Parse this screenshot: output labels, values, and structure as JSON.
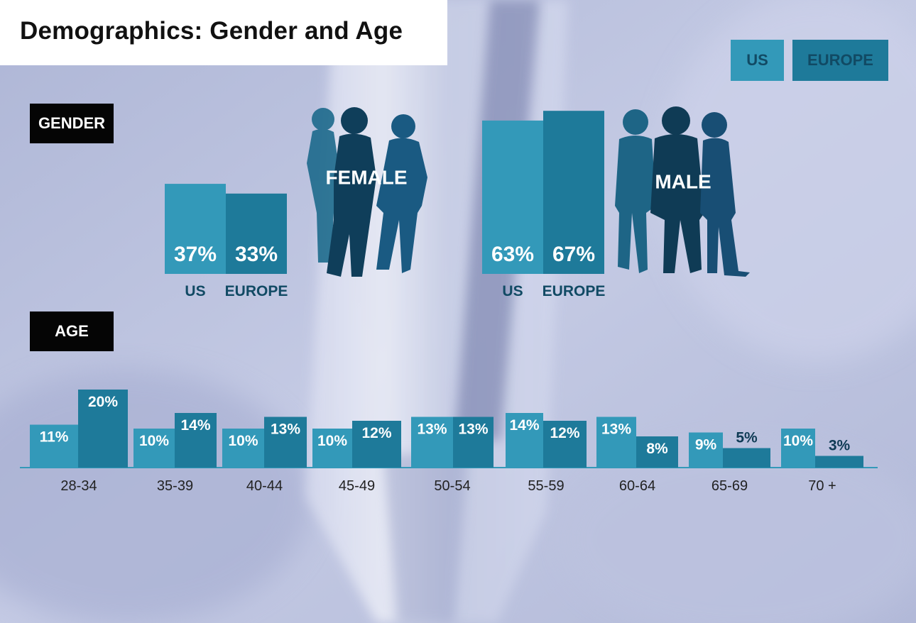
{
  "title": "Demographics: Gender and Age",
  "legend": [
    {
      "label": "US",
      "color": "#3399b9"
    },
    {
      "label": "EUROPE",
      "color": "#1e7a9a"
    }
  ],
  "sections": {
    "gender": "GENDER",
    "age": "AGE"
  },
  "icons": [
    "female-silhouettes-icon",
    "male-silhouettes-icon"
  ],
  "chart_data": [
    {
      "type": "bar",
      "title": "GENDER",
      "categories": [
        "FEMALE",
        "MALE"
      ],
      "group_labels": [
        "US",
        "EUROPE"
      ],
      "series": [
        {
          "name": "US",
          "values": [
            37,
            63
          ],
          "labels": [
            "37%",
            "63%"
          ]
        },
        {
          "name": "EUROPE",
          "values": [
            33,
            67
          ],
          "labels": [
            "33%",
            "67%"
          ]
        }
      ]
    },
    {
      "type": "bar",
      "title": "AGE",
      "categories": [
        "28-34",
        "35-39",
        "40-44",
        "45-49",
        "50-54",
        "55-59",
        "60-64",
        "65-69",
        "70 +"
      ],
      "series": [
        {
          "name": "US",
          "values": [
            11,
            10,
            10,
            10,
            13,
            14,
            13,
            9,
            10
          ],
          "labels": [
            "11%",
            "10%",
            "10%",
            "10%",
            "13%",
            "14%",
            "13%",
            "9%",
            "10%"
          ]
        },
        {
          "name": "EUROPE",
          "values": [
            20,
            14,
            13,
            12,
            13,
            12,
            8,
            5,
            3
          ],
          "labels": [
            "20%",
            "14%",
            "13%",
            "12%",
            "13%",
            "12%",
            "8%",
            "5%",
            "3%"
          ]
        }
      ]
    }
  ]
}
